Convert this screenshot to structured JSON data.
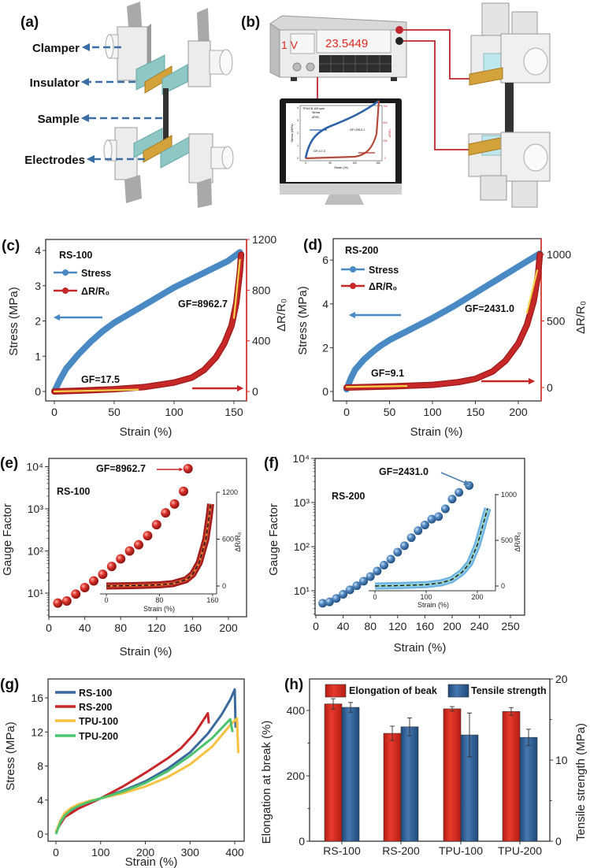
{
  "panel_labels": [
    "(a)",
    "(b)",
    "(c)",
    "(d)",
    "(e)",
    "(f)",
    "(g)",
    "(h)"
  ],
  "schematic_a": {
    "labels": [
      "Clamper",
      "Insulator",
      "Sample",
      "Electrodes"
    ],
    "colors": {
      "arrow": "#3a6ea5",
      "insulator": "#8fc7c4",
      "electrode": "#d4a23a",
      "sample": "#333333"
    }
  },
  "schematic_b": {
    "meter_reading": "23.5449",
    "meter_voltage": "1 V",
    "monitor_plot": {
      "title": "TPU/CB 100 spm",
      "legend": [
        "Stress",
        "ΔR/R₀"
      ],
      "annotations": [
        "GF=2513.1",
        "GF=17.3"
      ],
      "xlabel": "Strain (%)",
      "ylabel": "Stress (MPa)",
      "y2label": "ΔR/R₀",
      "xticks": [
        "0",
        "50",
        "100",
        "150"
      ],
      "yticks": [
        "0",
        "1",
        "2",
        "3",
        "4"
      ],
      "y2ticks": [
        "0",
        "250",
        "500",
        "750"
      ]
    },
    "colors": {
      "wire": "#c0262d",
      "display_text": "#e0281e"
    }
  },
  "colors": {
    "stress": "#4a8ac4",
    "resistance": "#c62828",
    "fit": "#f3d34a",
    "axis_red": "#e0281e"
  },
  "chart_data": [
    {
      "type": "line",
      "panel": "(c)",
      "title": "RS-100",
      "xlabel": "Strain (%)",
      "ylabel": "Stress (MPa)",
      "y2label": "ΔR/R₀",
      "xticks": [
        0,
        50,
        100,
        150
      ],
      "yticks": [
        0,
        1,
        2,
        3,
        4
      ],
      "y2ticks": [
        0,
        400,
        800,
        1200
      ],
      "xlim": [
        -5,
        160
      ],
      "ylim": [
        -0.3,
        4.3
      ],
      "y2lim": [
        -80,
        1200
      ],
      "legend": [
        "Stress",
        "ΔR/R₀"
      ],
      "legend_position": "top-left",
      "series": [
        {
          "name": "Stress",
          "axis": "left",
          "x": [
            0,
            5,
            10,
            20,
            30,
            40,
            50,
            60,
            75,
            90,
            100,
            115,
            130,
            145,
            155
          ],
          "y": [
            0,
            0.35,
            0.65,
            1.05,
            1.4,
            1.7,
            1.95,
            2.15,
            2.45,
            2.75,
            2.95,
            3.2,
            3.45,
            3.7,
            3.95
          ]
        },
        {
          "name": "ΔR/R₀",
          "axis": "right",
          "x": [
            0,
            25,
            50,
            75,
            100,
            115,
            125,
            135,
            142,
            148,
            152,
            155,
            156
          ],
          "y": [
            0,
            8,
            18,
            35,
            70,
            110,
            170,
            270,
            380,
            520,
            700,
            950,
            1080
          ]
        }
      ],
      "fits": [
        {
          "label": "GF=17.5",
          "x": [
            0,
            70
          ],
          "y": [
            0,
            15
          ]
        },
        {
          "label": "GF=8962.7",
          "x": [
            150,
            155
          ],
          "y": [
            580,
            1040
          ]
        }
      ]
    },
    {
      "type": "line",
      "panel": "(d)",
      "title": "RS-200",
      "xlabel": "Strain (%)",
      "ylabel": "Stress (MPa)",
      "y2label": "ΔR/R₀",
      "xticks": [
        0,
        50,
        100,
        150,
        200
      ],
      "yticks": [
        0,
        2,
        4,
        6
      ],
      "y2ticks": [
        0,
        500,
        1000
      ],
      "xlim": [
        -7,
        227
      ],
      "ylim": [
        -0.4,
        6.7
      ],
      "y2lim": [
        -100,
        1060
      ],
      "legend": [
        "Stress",
        "ΔR/R₀"
      ],
      "legend_position": "top-left",
      "series": [
        {
          "name": "Stress",
          "axis": "left",
          "x": [
            0,
            5,
            10,
            20,
            30,
            40,
            50,
            75,
            100,
            125,
            150,
            175,
            200,
            225
          ],
          "y": [
            0.1,
            0.6,
            1.0,
            1.45,
            1.8,
            2.1,
            2.35,
            2.85,
            3.35,
            3.9,
            4.5,
            5.1,
            5.7,
            6.3
          ]
        },
        {
          "name": "ΔR/R₀",
          "axis": "right",
          "x": [
            0,
            50,
            100,
            130,
            150,
            170,
            185,
            200,
            210,
            218,
            223,
            225
          ],
          "y": [
            0,
            8,
            20,
            40,
            65,
            120,
            200,
            330,
            470,
            650,
            850,
            1000
          ]
        }
      ],
      "fits": [
        {
          "label": "GF=9.1",
          "x": [
            0,
            70
          ],
          "y": [
            5,
            12
          ]
        },
        {
          "label": "GF=2431.0",
          "x": [
            210,
            222
          ],
          "y": [
            560,
            880
          ]
        }
      ]
    },
    {
      "type": "scatter",
      "panel": "(e)",
      "title": "RS-100",
      "xlabel": "Strain (%)",
      "ylabel": "Gauge Factor",
      "yscale": "log",
      "xticks": [
        0,
        40,
        80,
        120,
        160,
        200
      ],
      "yticks": [
        "10¹",
        "10²",
        "10³",
        "10⁴"
      ],
      "xlim": [
        0,
        220
      ],
      "ylim": [
        3,
        10000
      ],
      "x": [
        10,
        20,
        30,
        40,
        50,
        60,
        70,
        80,
        90,
        100,
        110,
        120,
        130,
        140,
        150,
        155
      ],
      "y": [
        5.8,
        6.5,
        9.5,
        13.5,
        19.5,
        28,
        43,
        65,
        100,
        140,
        230,
        420,
        800,
        1300,
        2600,
        8962.7
      ],
      "annotation": "GF=8962.7",
      "inset": {
        "xlabel": "Strain (%)",
        "y2label": "ΔR/R₀",
        "xticks": [
          0,
          80,
          160
        ],
        "y2ticks": [
          0,
          600,
          1200
        ],
        "x": [
          0,
          40,
          80,
          100,
          120,
          130,
          140,
          150,
          155,
          157
        ],
        "y": [
          0,
          5,
          15,
          30,
          80,
          150,
          300,
          600,
          900,
          1050
        ]
      }
    },
    {
      "type": "scatter",
      "panel": "(f)",
      "title": "RS-200",
      "xlabel": "Strain (%)",
      "ylabel": "Gauge Factor",
      "yscale": "log",
      "xticks": [
        0,
        40,
        80,
        120,
        160,
        200,
        240,
        250
      ],
      "yticks": [
        "10¹",
        "10²",
        "10³",
        "10⁴"
      ],
      "xlim": [
        0,
        305
      ],
      "ylim": [
        3,
        10000
      ],
      "x": [
        10,
        20,
        30,
        40,
        50,
        60,
        70,
        80,
        90,
        100,
        110,
        120,
        130,
        140,
        150,
        160,
        170,
        180,
        190,
        200,
        210,
        225
      ],
      "y": [
        5.2,
        5.6,
        6.7,
        8.3,
        10.5,
        13,
        16.5,
        21,
        28,
        38,
        52,
        75,
        105,
        160,
        230,
        310,
        420,
        480,
        720,
        1200,
        1700,
        2431.0
      ],
      "annotation": "GF=2431.0",
      "inset": {
        "xlabel": "Strain (%)",
        "y2label": "ΔR/R₀",
        "xticks": [
          0,
          100,
          200
        ],
        "y2ticks": [
          0,
          500,
          1000
        ],
        "x": [
          0,
          50,
          100,
          130,
          150,
          170,
          185,
          200,
          210,
          220
        ],
        "y": [
          0,
          5,
          15,
          35,
          70,
          150,
          250,
          450,
          650,
          850
        ]
      }
    },
    {
      "type": "line",
      "panel": "(g)",
      "xlabel": "Strain (%)",
      "ylabel": "Stress (MPa)",
      "xticks": [
        0,
        100,
        200,
        300,
        400
      ],
      "yticks": [
        0,
        4,
        8,
        12,
        16
      ],
      "xlim": [
        -18,
        420
      ],
      "ylim": [
        -0.8,
        18
      ],
      "legend_position": "top-left",
      "series": [
        {
          "name": "RS-100",
          "color": "#3a6a9e",
          "x": [
            0,
            10,
            20,
            35,
            50,
            75,
            100,
            150,
            200,
            250,
            300,
            340,
            370,
            390,
            400,
            402
          ],
          "y": [
            0.3,
            1.2,
            2,
            2.7,
            3.2,
            3.8,
            4.2,
            5.1,
            6.2,
            7.7,
            9.6,
            11.8,
            14,
            15.8,
            17,
            12.5
          ]
        },
        {
          "name": "RS-200",
          "color": "#c8282a",
          "x": [
            0,
            10,
            20,
            35,
            50,
            75,
            100,
            150,
            200,
            250,
            280,
            310,
            340,
            342
          ],
          "y": [
            0.3,
            1.2,
            2,
            2.5,
            3,
            3.6,
            4.2,
            5.6,
            7.2,
            8.9,
            10.1,
            11.8,
            14.2,
            13
          ]
        },
        {
          "name": "TPU-100",
          "color": "#f5c242",
          "x": [
            0,
            10,
            20,
            35,
            50,
            75,
            100,
            150,
            200,
            250,
            300,
            350,
            390,
            405,
            408
          ],
          "y": [
            0.2,
            1.6,
            2.5,
            3.1,
            3.5,
            3.9,
            4.2,
            4.8,
            5.6,
            6.7,
            8.2,
            10.3,
            12.8,
            13.6,
            9.5
          ]
        },
        {
          "name": "TPU-200",
          "color": "#4cc36e",
          "x": [
            0,
            10,
            20,
            35,
            50,
            75,
            100,
            150,
            200,
            250,
            300,
            350,
            390,
            395
          ],
          "y": [
            0,
            1.4,
            2.2,
            2.9,
            3.3,
            3.8,
            4.2,
            5,
            6,
            7.4,
            9.2,
            11.3,
            13.5,
            12
          ]
        }
      ]
    },
    {
      "type": "bar",
      "panel": "(h)",
      "categories": [
        "RS-100",
        "RS-200",
        "TPU-100",
        "TPU-200"
      ],
      "ylabel": "Elongation at break (%)",
      "y2label": "Tensile strength (MPa)",
      "yticks": [
        0,
        200,
        400
      ],
      "y2ticks": [
        0,
        10,
        20
      ],
      "ylim": [
        0,
        480
      ],
      "y2lim": [
        0,
        20
      ],
      "legend_position": "top",
      "series": [
        {
          "name": "Elongation of beak",
          "axis": "left",
          "color": "#d62a1e",
          "values": [
            420,
            330,
            405,
            397
          ],
          "errors": [
            16,
            22,
            7,
            12
          ]
        },
        {
          "name": "Tensile strength",
          "axis": "right",
          "color": "#2e5f95",
          "values": [
            16.5,
            14.1,
            13.1,
            12.8
          ],
          "errors": [
            0.6,
            1.1,
            2.7,
            1.0
          ]
        }
      ]
    }
  ]
}
